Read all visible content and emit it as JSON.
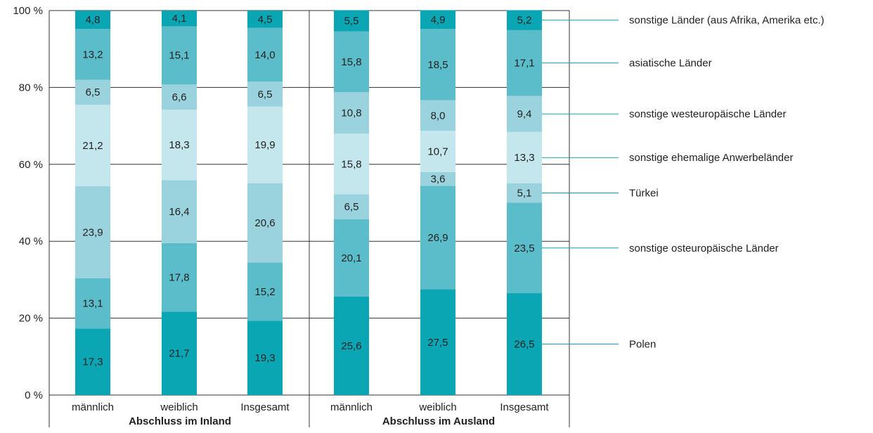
{
  "chart_data": {
    "type": "bar",
    "stacked": true,
    "ylim": [
      0,
      100
    ],
    "y_ticks": [
      "0 %",
      "20 %",
      "40 %",
      "60 %",
      "80 %",
      "100 %"
    ],
    "y_tick_values": [
      0,
      20,
      40,
      60,
      80,
      100
    ],
    "grid": true,
    "legend_placement": "right",
    "groups": [
      {
        "label": "Abschluss im Inland",
        "categories": [
          "männlich",
          "weiblich",
          "Insgesamt"
        ]
      },
      {
        "label": "Abschluss im Ausland",
        "categories": [
          "männlich",
          "weiblich",
          "Insgesamt"
        ]
      }
    ],
    "categories": [
      "männlich",
      "weiblich",
      "Insgesamt",
      "männlich",
      "weiblich",
      "Insgesamt"
    ],
    "series": [
      {
        "name": "Polen",
        "color": "#0aa6b4",
        "values": [
          17.3,
          21.7,
          19.3,
          25.6,
          27.5,
          26.5
        ],
        "labels": [
          "17,3",
          "21,7",
          "19,3",
          "25,6",
          "27,5",
          "26,5"
        ]
      },
      {
        "name": "sonstige osteuropäische Länder",
        "color": "#5bbcca",
        "values": [
          13.1,
          17.8,
          15.2,
          20.1,
          26.9,
          23.5
        ],
        "labels": [
          "13,1",
          "17,8",
          "15,2",
          "20,1",
          "26,9",
          "23,5"
        ]
      },
      {
        "name": "Türkei",
        "color": "#9ad3dd",
        "values": [
          23.9,
          16.4,
          20.6,
          6.5,
          3.6,
          5.1
        ],
        "labels": [
          "23,9",
          "16,4",
          "20,6",
          "6,5",
          "3,6",
          "5,1"
        ]
      },
      {
        "name": "sonstige ehemalige Anwerbeländer",
        "color": "#c4e6ed",
        "values": [
          21.2,
          18.3,
          19.9,
          15.8,
          10.7,
          13.3
        ],
        "labels": [
          "21,2",
          "18,3",
          "19,9",
          "15,8",
          "10,7",
          "13,3"
        ]
      },
      {
        "name": "sonstige westeuropäische Länder",
        "color": "#9ad3dd",
        "values": [
          6.5,
          6.6,
          6.5,
          10.8,
          8.0,
          9.4
        ],
        "labels": [
          "6,5",
          "6,6",
          "6,5",
          "10,8",
          "8,0",
          "9,4"
        ]
      },
      {
        "name": "asiatische Länder",
        "color": "#5bbcca",
        "values": [
          13.2,
          15.1,
          14.0,
          15.8,
          18.5,
          17.1
        ],
        "labels": [
          "13,2",
          "15,1",
          "14,0",
          "15,8",
          "18,5",
          "17,1"
        ]
      },
      {
        "name": "sonstige Länder (aus Afrika, Amerika etc.)",
        "color": "#0aa6b4",
        "values": [
          4.8,
          4.1,
          4.5,
          5.5,
          4.9,
          5.2
        ],
        "labels": [
          "4,8",
          "4,1",
          "4,5",
          "5,5",
          "4,9",
          "5,2"
        ]
      }
    ]
  }
}
